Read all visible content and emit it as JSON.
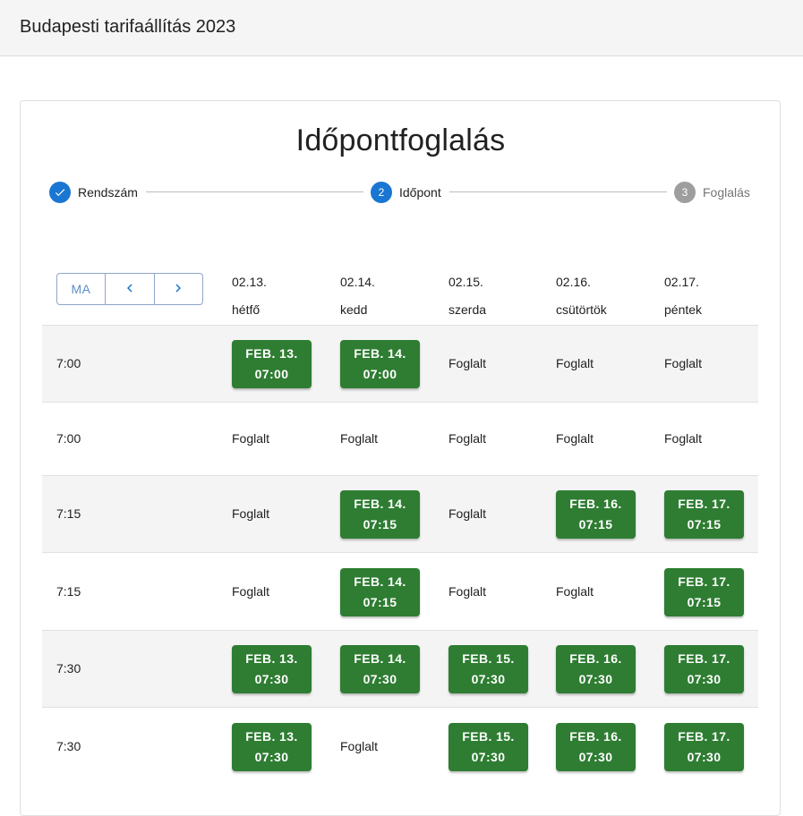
{
  "app": {
    "title": "Budapesti tarifaállítás 2023"
  },
  "page": {
    "heading": "Időpontfoglalás"
  },
  "stepper": [
    {
      "label": "Rendszám",
      "state": "done"
    },
    {
      "label": "Időpont",
      "number": "2",
      "state": "active"
    },
    {
      "label": "Foglalás",
      "number": "3",
      "state": "inactive"
    }
  ],
  "nav": {
    "today_label": "MA",
    "prev_icon": "chevron-left-icon",
    "next_icon": "chevron-right-icon"
  },
  "days": [
    {
      "date": "02.13.",
      "name": "hétfő"
    },
    {
      "date": "02.14.",
      "name": "kedd"
    },
    {
      "date": "02.15.",
      "name": "szerda"
    },
    {
      "date": "02.16.",
      "name": "csütörtök"
    },
    {
      "date": "02.17.",
      "name": "péntek"
    }
  ],
  "busy_label": "Foglalt",
  "rows": [
    {
      "time": "7:00",
      "cells": [
        {
          "free": true,
          "date": "FEB. 13.",
          "time": "07:00"
        },
        {
          "free": true,
          "date": "FEB. 14.",
          "time": "07:00"
        },
        {
          "free": false
        },
        {
          "free": false
        },
        {
          "free": false
        }
      ]
    },
    {
      "time": "7:00",
      "cells": [
        {
          "free": false
        },
        {
          "free": false
        },
        {
          "free": false
        },
        {
          "free": false
        },
        {
          "free": false
        }
      ]
    },
    {
      "time": "7:15",
      "cells": [
        {
          "free": false
        },
        {
          "free": true,
          "date": "FEB. 14.",
          "time": "07:15"
        },
        {
          "free": false
        },
        {
          "free": true,
          "date": "FEB. 16.",
          "time": "07:15"
        },
        {
          "free": true,
          "date": "FEB. 17.",
          "time": "07:15"
        }
      ]
    },
    {
      "time": "7:15",
      "cells": [
        {
          "free": false
        },
        {
          "free": true,
          "date": "FEB. 14.",
          "time": "07:15"
        },
        {
          "free": false
        },
        {
          "free": false
        },
        {
          "free": true,
          "date": "FEB. 17.",
          "time": "07:15"
        }
      ]
    },
    {
      "time": "7:30",
      "cells": [
        {
          "free": true,
          "date": "FEB. 13.",
          "time": "07:30"
        },
        {
          "free": true,
          "date": "FEB. 14.",
          "time": "07:30"
        },
        {
          "free": true,
          "date": "FEB. 15.",
          "time": "07:30"
        },
        {
          "free": true,
          "date": "FEB. 16.",
          "time": "07:30"
        },
        {
          "free": true,
          "date": "FEB. 17.",
          "time": "07:30"
        }
      ]
    },
    {
      "time": "7:30",
      "cells": [
        {
          "free": true,
          "date": "FEB. 13.",
          "time": "07:30"
        },
        {
          "free": false
        },
        {
          "free": true,
          "date": "FEB. 15.",
          "time": "07:30"
        },
        {
          "free": true,
          "date": "FEB. 16.",
          "time": "07:30"
        },
        {
          "free": true,
          "date": "FEB. 17.",
          "time": "07:30"
        }
      ]
    }
  ],
  "colors": {
    "accent": "#1976d2",
    "slot_free": "#2e7d32",
    "step_inactive": "#9e9e9e"
  }
}
